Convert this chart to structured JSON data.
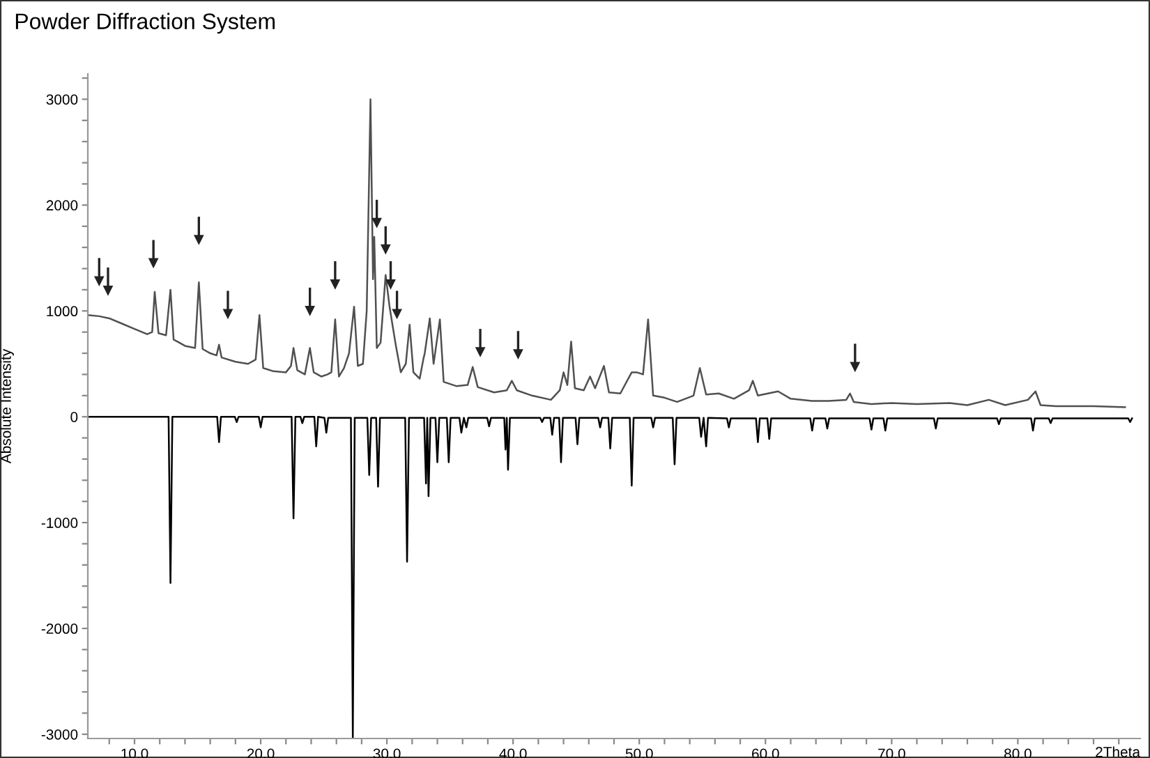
{
  "chart_data": {
    "type": "line",
    "title": "Powder Diffraction System",
    "xlabel": "2Theta",
    "ylabel": "Absolute Intensity",
    "xlim": [
      6.3,
      89.7
    ],
    "ylim": [
      -3040,
      3240
    ],
    "xticks": [
      {
        "value": 8,
        "label": null
      },
      {
        "value": 10,
        "label": "10.0"
      },
      {
        "value": 12,
        "label": null
      },
      {
        "value": 14,
        "label": null
      },
      {
        "value": 16,
        "label": null
      },
      {
        "value": 18,
        "label": null
      },
      {
        "value": 20,
        "label": "20.0"
      },
      {
        "value": 22,
        "label": null
      },
      {
        "value": 24,
        "label": null
      },
      {
        "value": 26,
        "label": null
      },
      {
        "value": 28,
        "label": null
      },
      {
        "value": 30,
        "label": "30.0"
      },
      {
        "value": 32,
        "label": null
      },
      {
        "value": 34,
        "label": null
      },
      {
        "value": 36,
        "label": null
      },
      {
        "value": 38,
        "label": null
      },
      {
        "value": 40,
        "label": "40.0"
      },
      {
        "value": 42,
        "label": null
      },
      {
        "value": 44,
        "label": null
      },
      {
        "value": 46,
        "label": null
      },
      {
        "value": 48,
        "label": null
      },
      {
        "value": 50,
        "label": "50.0"
      },
      {
        "value": 52,
        "label": null
      },
      {
        "value": 54,
        "label": null
      },
      {
        "value": 56,
        "label": null
      },
      {
        "value": 58,
        "label": null
      },
      {
        "value": 60,
        "label": "60.0"
      },
      {
        "value": 62,
        "label": null
      },
      {
        "value": 64,
        "label": null
      },
      {
        "value": 66,
        "label": null
      },
      {
        "value": 68,
        "label": null
      },
      {
        "value": 70,
        "label": "70.0"
      },
      {
        "value": 72,
        "label": null
      },
      {
        "value": 74,
        "label": null
      },
      {
        "value": 76,
        "label": null
      },
      {
        "value": 78,
        "label": null
      },
      {
        "value": 80,
        "label": "80.0"
      },
      {
        "value": 82,
        "label": null
      },
      {
        "value": 84,
        "label": null
      },
      {
        "value": 86,
        "label": null
      },
      {
        "value": 88,
        "label": null
      }
    ],
    "yticks": [
      -3000,
      {
        "value": -2800,
        "label": null
      },
      {
        "value": -2600,
        "label": null
      },
      {
        "value": -2400,
        "label": null
      },
      {
        "value": -2200,
        "label": null
      },
      -2000,
      {
        "value": -1800,
        "label": null
      },
      {
        "value": -1600,
        "label": null
      },
      {
        "value": -1400,
        "label": null
      },
      {
        "value": -1200,
        "label": null
      },
      -1000,
      {
        "value": -800,
        "label": null
      },
      {
        "value": -600,
        "label": null
      },
      {
        "value": -400,
        "label": null
      },
      {
        "value": -200,
        "label": null
      },
      0,
      {
        "value": 200,
        "label": null
      },
      {
        "value": 400,
        "label": null
      },
      {
        "value": 600,
        "label": null
      },
      {
        "value": 800,
        "label": null
      },
      1000,
      {
        "value": 1200,
        "label": null
      },
      {
        "value": 1400,
        "label": null
      },
      {
        "value": 1600,
        "label": null
      },
      {
        "value": 1800,
        "label": null
      },
      2000,
      {
        "value": 2200,
        "label": null
      },
      {
        "value": 2400,
        "label": null
      },
      {
        "value": 2600,
        "label": null
      },
      {
        "value": 2800,
        "label": null
      },
      3000,
      {
        "value": 3200,
        "label": null
      }
    ],
    "grid": false,
    "legend": false,
    "marker": "none",
    "line_style": "solid",
    "series": [
      {
        "color": "#505050",
        "x": [
          6.3,
          7.2,
          8,
          9,
          10,
          11,
          11.4,
          11.6,
          11.9,
          12.5,
          12.85,
          13.1,
          14,
          14.8,
          15.1,
          15.4,
          16,
          16.5,
          16.7,
          16.9,
          18,
          19,
          19.6,
          19.9,
          20.2,
          21,
          22,
          22.4,
          22.6,
          22.9,
          23.5,
          23.9,
          24.2,
          24.8,
          25.3,
          25.6,
          25.9,
          26.2,
          26.6,
          27.0,
          27.4,
          27.7,
          28.1,
          28.4,
          28.7,
          28.9,
          29.0,
          29.2,
          29.5,
          29.9,
          30.2,
          30.4,
          30.7,
          31.1,
          31.5,
          31.8,
          32.1,
          32.6,
          32.9,
          33.0,
          33.4,
          33.7,
          34.2,
          34.5,
          35.5,
          36.4,
          36.8,
          37.2,
          38.5,
          39.5,
          39.9,
          40.3,
          41.5,
          43,
          43.7,
          44.0,
          44.3,
          44.6,
          44.9,
          45.6,
          46.1,
          46.5,
          47.2,
          47.6,
          48.5,
          49.4,
          49.8,
          50.3,
          50.7,
          51.1,
          52,
          53,
          54.3,
          54.8,
          55.3,
          56.3,
          57.5,
          58.7,
          59.0,
          59.4,
          61,
          62,
          63.7,
          65,
          66.4,
          66.7,
          67,
          68.4,
          70,
          72,
          74.6,
          76,
          77.7,
          79,
          80.8,
          81.4,
          81.8,
          83,
          86,
          88.5
        ],
        "values": [
          960,
          950,
          930,
          880,
          830,
          780,
          800,
          1180,
          790,
          770,
          1200,
          730,
          670,
          650,
          1270,
          640,
          600,
          580,
          680,
          560,
          520,
          500,
          540,
          960,
          460,
          430,
          420,
          480,
          650,
          440,
          400,
          650,
          420,
          380,
          400,
          420,
          920,
          380,
          460,
          600,
          1040,
          480,
          500,
          1000,
          3000,
          1300,
          1700,
          650,
          700,
          1340,
          1050,
          900,
          680,
          420,
          500,
          870,
          420,
          360,
          550,
          600,
          930,
          500,
          920,
          330,
          290,
          300,
          470,
          280,
          230,
          250,
          340,
          250,
          200,
          160,
          250,
          420,
          300,
          710,
          270,
          250,
          380,
          270,
          480,
          230,
          220,
          420,
          420,
          400,
          920,
          200,
          180,
          140,
          200,
          460,
          210,
          220,
          170,
          250,
          340,
          200,
          240,
          170,
          150,
          150,
          160,
          220,
          140,
          120,
          130,
          120,
          130,
          110,
          160,
          110,
          160,
          240,
          110,
          100,
          100,
          90
        ]
      },
      {
        "color": "#000000",
        "x": [
          6.3,
          12.7,
          12.85,
          13.0,
          16.55,
          16.7,
          16.85,
          17.95,
          18.1,
          18.25,
          19.85,
          20.0,
          20.15,
          22.45,
          22.6,
          22.75,
          23.15,
          23.3,
          23.45,
          24.25,
          24.4,
          24.55,
          25.05,
          25.2,
          25.35,
          27.15,
          27.3,
          27.45,
          28.45,
          28.6,
          28.75,
          29.15,
          29.3,
          29.45,
          31.45,
          31.6,
          31.75,
          32.95,
          33.1,
          33.2,
          33.3,
          33.45,
          33.85,
          34.0,
          34.15,
          34.75,
          34.9,
          35.05,
          35.75,
          35.9,
          36.1,
          36.3,
          36.45,
          37.95,
          38.1,
          38.25,
          39.3,
          39.4,
          39.5,
          39.6,
          39.75,
          42.15,
          42.3,
          42.45,
          42.95,
          43.1,
          43.25,
          43.65,
          43.8,
          43.95,
          44.95,
          45.1,
          45.25,
          46.75,
          46.9,
          47.05,
          47.55,
          47.7,
          47.85,
          49.25,
          49.4,
          49.55,
          50.95,
          51.1,
          51.25,
          52.65,
          52.8,
          52.95,
          54.75,
          54.9,
          55.1,
          55.3,
          55.45,
          56.95,
          57.1,
          57.25,
          59.25,
          59.4,
          59.55,
          60.15,
          60.3,
          60.45,
          63.55,
          63.7,
          63.85,
          64.75,
          64.9,
          65.05,
          68.25,
          68.4,
          68.55,
          69.35,
          69.5,
          69.65,
          73.35,
          73.5,
          73.65,
          78.35,
          78.5,
          78.65,
          81.05,
          81.2,
          81.35,
          82.45,
          82.6,
          82.75,
          88.75,
          88.9,
          89.05
        ],
        "values": [
          0,
          0,
          -1570,
          0,
          0,
          -240,
          0,
          0,
          -50,
          0,
          0,
          -100,
          0,
          0,
          -960,
          0,
          0,
          -60,
          0,
          0,
          -280,
          0,
          -10,
          -150,
          -10,
          -10,
          -3040,
          -10,
          -10,
          -550,
          -10,
          -10,
          -660,
          -10,
          -10,
          -1370,
          -10,
          -10,
          -630,
          -10,
          -750,
          -10,
          -10,
          -430,
          -10,
          -10,
          -430,
          -10,
          -10,
          -150,
          -10,
          -100,
          -10,
          -10,
          -90,
          -10,
          -10,
          -310,
          -10,
          -500,
          -10,
          -10,
          -50,
          -10,
          -10,
          -170,
          -10,
          -10,
          -430,
          -10,
          -10,
          -260,
          -10,
          -10,
          -100,
          -10,
          -10,
          -300,
          -10,
          -10,
          -650,
          -10,
          -10,
          -100,
          -10,
          -10,
          -450,
          -10,
          -10,
          -190,
          -10,
          -280,
          -10,
          -15,
          -100,
          -15,
          -15,
          -240,
          -15,
          -15,
          -210,
          -15,
          -15,
          -130,
          -15,
          -15,
          -110,
          -15,
          -15,
          -120,
          -15,
          -15,
          -130,
          -15,
          -15,
          -110,
          -15,
          -15,
          -70,
          -15,
          -15,
          -130,
          -15,
          -15,
          -60,
          -15,
          -15,
          -50,
          -15
        ]
      },
      {
        "type": "scatter",
        "marker": "triangle",
        "color": "#222222",
        "x": [
          7.2,
          7.9,
          11.5,
          15.1,
          17.4,
          23.9,
          25.9,
          29.2,
          29.9,
          30.3,
          30.8,
          37.4,
          40.4,
          67.1
        ],
        "values": [
          1280,
          1190,
          1450,
          1670,
          970,
          1000,
          1250,
          1830,
          1580,
          1250,
          970,
          610,
          590,
          470
        ],
        "errors": [
          [
            1280,
            1500
          ],
          [
            1190,
            1410
          ],
          [
            1450,
            1670
          ],
          [
            1670,
            1890
          ],
          [
            970,
            1190
          ],
          [
            1000,
            1220
          ],
          [
            1250,
            1470
          ],
          [
            1830,
            2050
          ],
          [
            1580,
            1800
          ],
          [
            1250,
            1470
          ],
          [
            970,
            1190
          ],
          [
            610,
            830
          ],
          [
            590,
            810
          ],
          [
            470,
            690
          ]
        ]
      }
    ]
  }
}
